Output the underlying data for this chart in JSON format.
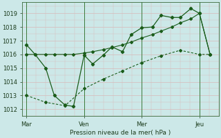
{
  "title": "",
  "xlabel": "Pression niveau de la mer( hPa )",
  "ylabel": "",
  "bg_color": "#cce8e8",
  "line_color": "#1a5c1a",
  "grid_color": "#aacaca",
  "pink_grid": "#d8b8b8",
  "ylim": [
    1011.5,
    1019.8
  ],
  "yticks": [
    1012,
    1013,
    1014,
    1015,
    1016,
    1017,
    1018,
    1019
  ],
  "xtick_labels": [
    "Mar",
    "Ven",
    "Mer",
    "Jeu"
  ],
  "xtick_positions": [
    0,
    27,
    54,
    81
  ],
  "series1_x": [
    0,
    4,
    9,
    13,
    18,
    22,
    27,
    31,
    36,
    40,
    45,
    49,
    54,
    59,
    63,
    68,
    72,
    77,
    81,
    86
  ],
  "series1_y": [
    1016.7,
    1016.0,
    1015.0,
    1013.0,
    1012.3,
    1012.2,
    1015.95,
    1015.3,
    1015.95,
    1016.55,
    1016.2,
    1017.45,
    1017.95,
    1018.0,
    1018.85,
    1018.7,
    1018.7,
    1019.35,
    1019.0,
    1016.0
  ],
  "series2_x": [
    0,
    4,
    9,
    13,
    18,
    22,
    27,
    31,
    36,
    40,
    45,
    49,
    54,
    59,
    63,
    68,
    72,
    77,
    81,
    86
  ],
  "series2_y": [
    1016.0,
    1016.0,
    1016.0,
    1016.0,
    1016.0,
    1016.0,
    1016.1,
    1016.2,
    1016.35,
    1016.5,
    1016.7,
    1016.9,
    1017.2,
    1017.45,
    1017.7,
    1018.0,
    1018.3,
    1018.6,
    1019.0,
    1016.0
  ],
  "series3_x": [
    0,
    9,
    18,
    27,
    36,
    45,
    54,
    63,
    72,
    81,
    86
  ],
  "series3_y": [
    1013.0,
    1012.5,
    1012.25,
    1013.5,
    1014.2,
    1014.8,
    1015.4,
    1015.9,
    1016.3,
    1016.0,
    1016.0
  ],
  "vline_positions": [
    0,
    27,
    54,
    81
  ],
  "figsize": [
    3.2,
    2.0
  ],
  "dpi": 100
}
